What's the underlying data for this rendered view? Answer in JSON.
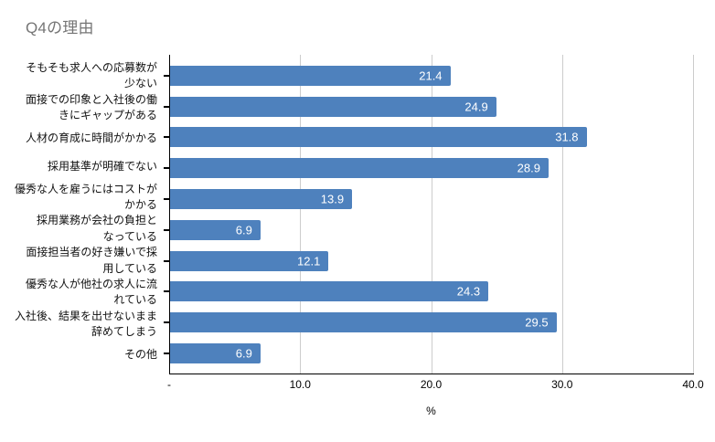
{
  "title": "Q4の理由",
  "chart_data": {
    "type": "bar",
    "orientation": "horizontal",
    "title": "Q4の理由",
    "categories": [
      "そもそも求人への応募数が\n少ない",
      "面接での印象と入社後の働\nきにギャップがある",
      "人材の育成に時間がかかる",
      "採用基準が明確でない",
      "優秀な人を雇うにはコストが\nかかる",
      "採用業務が会社の負担と\nなっている",
      "面接担当者の好き嫌いで採\n用している",
      "優秀な人が他社の求人に流\nれている",
      "入社後、結果を出せないまま\n辞めてしまう",
      "その他"
    ],
    "values": [
      21.4,
      24.9,
      31.8,
      28.9,
      13.9,
      6.9,
      12.1,
      24.3,
      29.5,
      6.9
    ],
    "value_labels": [
      "21.4",
      "24.9",
      "31.8",
      "28.9",
      "13.9",
      "6.9",
      "12.1",
      "24.3",
      "29.5",
      "6.9"
    ],
    "xlabel": "%",
    "xlim": [
      0,
      40
    ],
    "x_ticks": [
      {
        "label": "-",
        "value": 0
      },
      {
        "label": "10.0",
        "value": 10
      },
      {
        "label": "20.0",
        "value": 20
      },
      {
        "label": "30.0",
        "value": 30
      },
      {
        "label": "40.0",
        "value": 40
      }
    ],
    "grid": true,
    "legend": "none",
    "colors": {
      "bar": "#4e81bd",
      "gridline": "#cccccc",
      "axis": "#000000",
      "title": "#757575",
      "value_label": "#ffffff",
      "background": "#ffffff"
    }
  }
}
